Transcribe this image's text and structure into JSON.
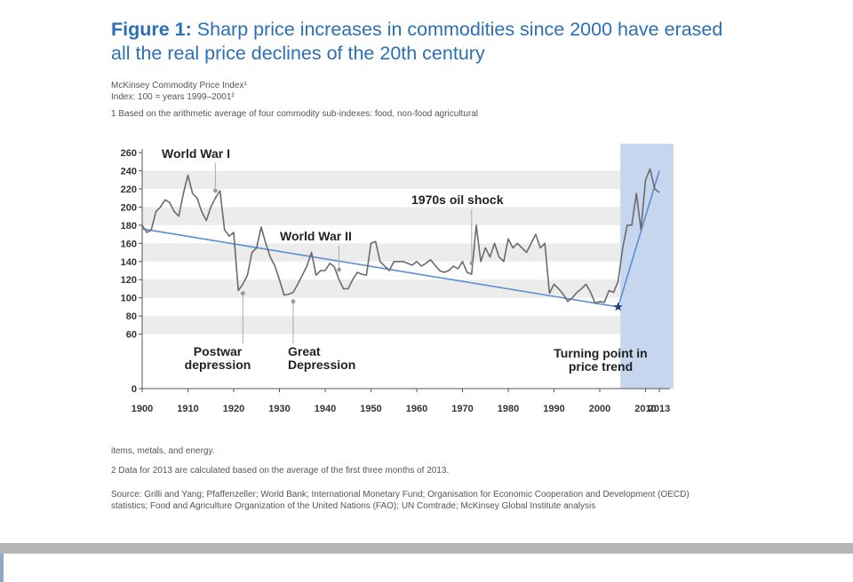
{
  "figure": {
    "title_lead": "Figure 1:",
    "title_rest": "Sharp price increases in commodities since 2000 have erased all the real price declines of the 20th century",
    "subtitle_line1": "McKinsey Commodity Price Index¹",
    "subtitle_line2": "Index: 100 = years 1999–2001²",
    "note1_part1": "1 Based on the arithmetic average of four commodity sub-indexes: food, non-food agricultural",
    "note1_part2": "items, metals, and energy.",
    "note2": "2 Data for 2013 are calculated based on the average of the first three months of 2013.",
    "source": "Source: Grilli and Yang; Pfaffenzeller; World Bank; International Monetary Fund; Organisation for Economic Cooperation and Development (OECD) statistics; Food and Agriculture Organization of the United Nations (FAO); UN Comtrade; McKinsey Global Institute analysis"
  },
  "colors": {
    "title": "#2b6fb5",
    "line": "#6b6b6b",
    "trend": "#5b8fd0",
    "band": "#c5d6ee",
    "stripe": "#ececec",
    "star": "#1f3f7a"
  },
  "chart_data": {
    "type": "line",
    "title": "Figure 1: Sharp price increases in commodities since 2000 have erased all the real price declines of the 20th century",
    "xlabel": "",
    "ylabel": "",
    "xlim": [
      1900,
      2013
    ],
    "ylim": [
      0,
      260
    ],
    "x_ticks": [
      1900,
      1910,
      1920,
      1930,
      1940,
      1950,
      1960,
      1970,
      1980,
      1990,
      2000,
      2010,
      2013
    ],
    "y_ticks": [
      0,
      60,
      80,
      100,
      120,
      140,
      160,
      180,
      200,
      220,
      240,
      260
    ],
    "grid": "horizontal alternating bands",
    "series": [
      {
        "x": [
          1900,
          1901,
          1902,
          1903,
          1904,
          1905,
          1906,
          1907,
          1908,
          1909,
          1910,
          1911,
          1912,
          1913,
          1914,
          1915,
          1916,
          1917,
          1918,
          1919,
          1920,
          1921,
          1922,
          1923,
          1924,
          1925,
          1926,
          1927,
          1928,
          1929,
          1930,
          1931,
          1932,
          1933,
          1934,
          1935,
          1936,
          1937,
          1938,
          1939,
          1940,
          1941,
          1942,
          1943,
          1944,
          1945,
          1946,
          1947,
          1948,
          1949,
          1950,
          1951,
          1952,
          1953,
          1954,
          1955,
          1956,
          1957,
          1958,
          1959,
          1960,
          1961,
          1962,
          1963,
          1964,
          1965,
          1966,
          1967,
          1968,
          1969,
          1970,
          1971,
          1972,
          1973,
          1974,
          1975,
          1976,
          1977,
          1978,
          1979,
          1980,
          1981,
          1982,
          1983,
          1984,
          1985,
          1986,
          1987,
          1988,
          1989,
          1990,
          1991,
          1992,
          1993,
          1994,
          1995,
          1996,
          1997,
          1998,
          1999,
          2000,
          2001,
          2002,
          2003,
          2004,
          2005,
          2006,
          2007,
          2008,
          2009,
          2010,
          2011,
          2012,
          2013
        ],
        "values": [
          180,
          172,
          175,
          195,
          200,
          208,
          205,
          195,
          190,
          215,
          235,
          215,
          210,
          195,
          185,
          200,
          210,
          218,
          175,
          168,
          172,
          108,
          115,
          125,
          150,
          155,
          178,
          160,
          145,
          135,
          120,
          103,
          104,
          106,
          115,
          125,
          135,
          150,
          125,
          130,
          130,
          138,
          134,
          120,
          110,
          110,
          120,
          128,
          126,
          125,
          160,
          162,
          140,
          135,
          130,
          140,
          140,
          140,
          138,
          136,
          140,
          135,
          138,
          142,
          136,
          130,
          128,
          130,
          135,
          132,
          140,
          128,
          126,
          180,
          140,
          155,
          145,
          160,
          145,
          140,
          165,
          155,
          160,
          155,
          150,
          160,
          170,
          155,
          160,
          105,
          115,
          110,
          104,
          96,
          100,
          106,
          110,
          115,
          106,
          94,
          96,
          95,
          108,
          106,
          118,
          155,
          180,
          180,
          215,
          175,
          230,
          242,
          220,
          216
        ]
      }
    ],
    "trend_line": {
      "segment1": {
        "from": [
          1900,
          176
        ],
        "to": [
          2004,
          90
        ]
      },
      "segment2": {
        "from": [
          2004,
          90
        ],
        "to": [
          2013,
          240
        ]
      }
    },
    "highlight_band": {
      "from": 2004.5,
      "to": 2013
    },
    "turning_point_marker": [
      2004,
      90
    ],
    "annotations": [
      {
        "text": "World War I",
        "x": 1916,
        "y": 218
      },
      {
        "text": "World War II",
        "x": 1943,
        "y": 131
      },
      {
        "text": "1970s oil shock",
        "x": 1972,
        "y": 138
      },
      {
        "text": "Postwar depression",
        "x": 1922,
        "y": 105
      },
      {
        "text": "Great Depression",
        "x": 1933,
        "y": 96
      },
      {
        "text": "Turning point in price trend",
        "x": 2004,
        "y": 90
      }
    ]
  }
}
